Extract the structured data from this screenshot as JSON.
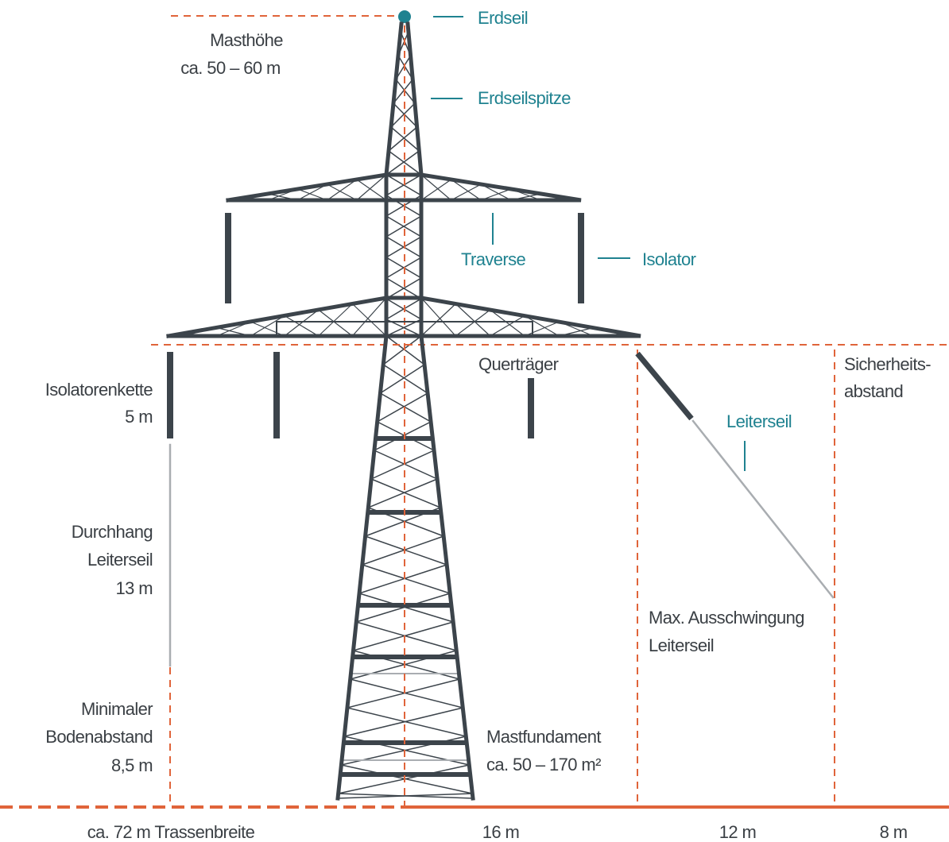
{
  "labels": {
    "erdseil": [
      "Erdseil"
    ],
    "masthoehe": [
      "Masthöhe",
      "ca. 50 – 60 m"
    ],
    "erdseilspitze": [
      "Erdseilspitze"
    ],
    "traverse": [
      "Traverse"
    ],
    "isolator": [
      "Isolator"
    ],
    "quertraeger": [
      "Querträger"
    ],
    "isolatorenkette": [
      "Isolatorenkette",
      "5 m"
    ],
    "sicherheitsabstand": [
      "Sicherheits-",
      "abstand"
    ],
    "leiterseil": [
      "Leiterseil"
    ],
    "durchhang": [
      "Durchhang",
      "Leiterseil",
      "13 m"
    ],
    "ausschwingung": [
      "Max. Ausschwingung",
      "Leiterseil"
    ],
    "bodenabstand": [
      "Minimaler",
      "Bodenabstand",
      "8,5 m"
    ],
    "mastfundament": [
      "Mastfundament",
      "ca. 50 – 170 m²"
    ]
  },
  "widths": [
    "ca. 72 m Trassenbreite",
    "16 m",
    "12 m",
    "8 m"
  ]
}
